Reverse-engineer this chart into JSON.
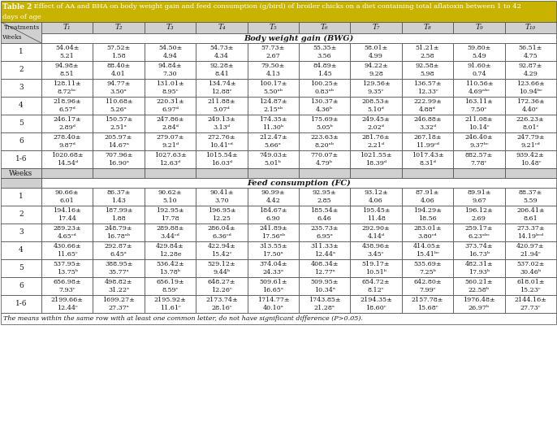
{
  "title_label": "Table 2",
  "title_text": " Effect of AA and BHA on body weight gain and feed consumption (g/bird) of broiler chicks on a diet containing total aflatoxin between 1 to 42",
  "title_line2": "days of age",
  "col_headers": [
    "Treatments",
    "T₁",
    "T₂",
    "T₃",
    "T₄",
    "T₅",
    "T₆",
    "T₇",
    "T₈",
    "T₉",
    "T₁₀"
  ],
  "section1_label": "Body weight gain (BWG)",
  "section2_label": "Feed consumption (FC)",
  "footer": "The means within the same row with at least one common letter, do not have significant difference (P>0.05).",
  "bwg_data": [
    {
      "week": "1",
      "line1": [
        "54.04±",
        "57.52±",
        "54.50±",
        "54.73±",
        "57.73±",
        "55.35±",
        "58.01±",
        "51.21±",
        "59.80±",
        "56.51±"
      ],
      "line2": [
        "5.21",
        "1.58",
        "4.94",
        "4.34",
        "2.67",
        "3.56",
        "4.99",
        "2.58",
        "5.49",
        "4.75"
      ]
    },
    {
      "week": "2",
      "line1": [
        "94.98±",
        "88.40±",
        "94.84±",
        "92.28±",
        "79.50±",
        "84.89±",
        "94.22±",
        "92.58±",
        "91.60±",
        "92.87±"
      ],
      "line2": [
        "8.51",
        "4.01",
        "7.30",
        "8.41",
        "4.13",
        "1.45",
        "9.28",
        "5.98",
        "0.74",
        "4.29"
      ]
    },
    {
      "week": "3",
      "line1": [
        "128.11±",
        "94.77±",
        "131.01±",
        "134.74±",
        "100.17±",
        "100.25±",
        "129.56±",
        "136.57±",
        "110.56±",
        "123.66±"
      ],
      "line2": [
        "8.72ᵇᶜ",
        "3.50ᵃ",
        "8.95ᶜ",
        "12.88ᶜ",
        "5.50ᵃᵇ",
        "0.83ᵃᵇ",
        "9.35ᶜ",
        "12.33ᶜ",
        "4.69ᵃᵇᶜ",
        "10.94ᵇᶜ"
      ]
    },
    {
      "week": "4",
      "line1": [
        "218.96±",
        "110.68±",
        "220.31±",
        "211.88±",
        "124.87±",
        "130.37±",
        "208.53±",
        "222.99±",
        "163.11±",
        "172.36±"
      ],
      "line2": [
        "6.57ᵈ",
        "5.26ᵃ",
        "6.97ᵈ",
        "5.07ᵈ",
        "2.15ᵃᵇ",
        "4.36ᵇ",
        "5.10ᵈ",
        "4.88ᵈ",
        "7.50ᶜ",
        "4.40ᶜ"
      ]
    },
    {
      "week": "5",
      "line1": [
        "246.17±",
        "150.57±",
        "247.86±",
        "249.13±",
        "174.35±",
        "175.69±",
        "249.45±",
        "246.88±",
        "211.08±",
        "226.23±"
      ],
      "line2": [
        "2.89ᵈ",
        "2.51ᵃ",
        "2.84ᵈ",
        "3.13ᵈ",
        "11.30ᵇ",
        "5.05ᵇ",
        "2.02ᵈ",
        "3.32ᵈ",
        "10.14ᶜ",
        "8.01ᶜ"
      ]
    },
    {
      "week": "6",
      "line1": [
        "278.40±",
        "205.97±",
        "279.07±",
        "272.76±",
        "212.47±",
        "223.63±",
        "281.76±",
        "267.18±",
        "246.40±",
        "247.79±"
      ],
      "line2": [
        "9.87ᵈ",
        "14.67ᵃ",
        "9.21ᵈ",
        "10.41ᶜᵈ",
        "5.66ᵃ",
        "8.20ᵃᵇ",
        "2.21ᵈ",
        "11.99ᶜᵈ",
        "9.37ᵇᶜ",
        "9.21ᶜᵈ"
      ]
    },
    {
      "week": "1-6",
      "line1": [
        "1020.68±",
        "707.96±",
        "1027.63±",
        "1015.54±",
        "749.03±",
        "770.07±",
        "1021.55±",
        "1017.43±",
        "882.57±",
        "939.42±"
      ],
      "line2": [
        "14.54ᵈ",
        "16.90ᵃ",
        "12.63ᵈ",
        "16.03ᵈ",
        "5.01ᵇ",
        "4.79ᵇ",
        "18.39ᵈ",
        "8.31ᵈ",
        "7.78ᶜ",
        "10.48ᶜ"
      ]
    }
  ],
  "fc_data": [
    {
      "week": "1",
      "line1": [
        "90.66±",
        "86.37±",
        "90.62±",
        "90.41±",
        "90.99±",
        "92.95±",
        "93.12±",
        "87.91±",
        "89.91±",
        "88.37±"
      ],
      "line2": [
        "6.01",
        "1.43",
        "5.10",
        "3.70",
        "4.42",
        "2.85",
        "4.06",
        "4.06",
        "9.67",
        "5.59"
      ]
    },
    {
      "week": "2",
      "line1": [
        "194.16±",
        "187.99±",
        "192.95±",
        "196.95±",
        "184.67±",
        "185.54±",
        "195.45±",
        "194.29±",
        "196.12±",
        "206.41±"
      ],
      "line2": [
        "17.44",
        "1.88",
        "17.78",
        "12.25",
        "6.90",
        "6.46",
        "11.48",
        "18.56",
        "2.69",
        "8.61"
      ]
    },
    {
      "week": "3",
      "line1": [
        "289.23±",
        "248.79±",
        "289.88±",
        "286.04±",
        "241.89±",
        "235.73±",
        "292.90±",
        "283.01±",
        "259.17±",
        "273.37±"
      ],
      "line2": [
        "4.65ᶜᵈ",
        "16.78ᵃᵇ",
        "3.44ᶜᵈ",
        "6.36ᶜᵈ",
        "17.56ᵃᵇ",
        "6.95ᵃ",
        "4.14ᵈ",
        "3.80ᶜᵈ",
        "6.23ᵃᵇᶜ",
        "14.19ᵇᶜᵈ"
      ]
    },
    {
      "week": "4",
      "line1": [
        "430.66±",
        "292.87±",
        "429.84±",
        "422.94±",
        "313.55±",
        "311.33±",
        "438.96±",
        "414.05±",
        "373.74±",
        "420.97±"
      ],
      "line2": [
        "11.65ᶜ",
        "6.45ᵃ",
        "12.28e",
        "15.42ᶜ",
        "17.50ᵃ",
        "12.44ᵃ",
        "3.45ᶜ",
        "15.41ᵇᶜ",
        "16.73ᵇ",
        "21.94ᶜ"
      ]
    },
    {
      "week": "5",
      "line1": [
        "537.95±",
        "388.95±",
        "536.42±",
        "529.12±",
        "374.04±",
        "408.34±",
        "519.17±",
        "535.69±",
        "482.31±",
        "537.02±"
      ],
      "line2": [
        "13.75ᵇ",
        "35.77ᵃ",
        "13.78ᵇ",
        "9.44ᵇ",
        "24.33ᵃ",
        "12.77ᵃ",
        "10.51ᵇ",
        "7.25ᵇ",
        "17.93ᵇ",
        "30.46ᵇ"
      ]
    },
    {
      "week": "6",
      "line1": [
        "656.98±",
        "498.82±",
        "656.19±",
        "648.27±",
        "509.61±",
        "509.95±",
        "654.72±",
        "642.80±",
        "560.21±",
        "618.01±"
      ],
      "line2": [
        "7.93ᶜ",
        "31.22ᵃ",
        "8.59ᶜ",
        "12.26ᶜ",
        "16.65ᵃ",
        "10.34ᵃ",
        "8.12ᶜ",
        "7.99ᶜ",
        "22.58ᵇ",
        "15.23ᶜ"
      ]
    },
    {
      "week": "1-6",
      "line1": [
        "2199.66±",
        "1699.27±",
        "2195.92±",
        "2173.74±",
        "1714.77±",
        "1743.85±",
        "2194.35±",
        "2157.78±",
        "1976.48±",
        "2144.16±"
      ],
      "line2": [
        "12.44ᶜ",
        "27.37ᵃ",
        "11.61ᶜ",
        "28.16ᶜ",
        "40.10ᵃ",
        "21.28ᵃ",
        "18.60ᶜ",
        "15.68ᶜ",
        "26.97ᵇ",
        "27.73ᶜ"
      ]
    }
  ],
  "table2_bg": "#b8860b",
  "header_bg": "#d0d0d0",
  "border_color": "#444444",
  "text_color": "#1a1a1a",
  "title_fs": 6.5,
  "header_fs": 6.5,
  "data_fs": 5.8,
  "section_fs": 7.0,
  "footer_fs": 5.8
}
